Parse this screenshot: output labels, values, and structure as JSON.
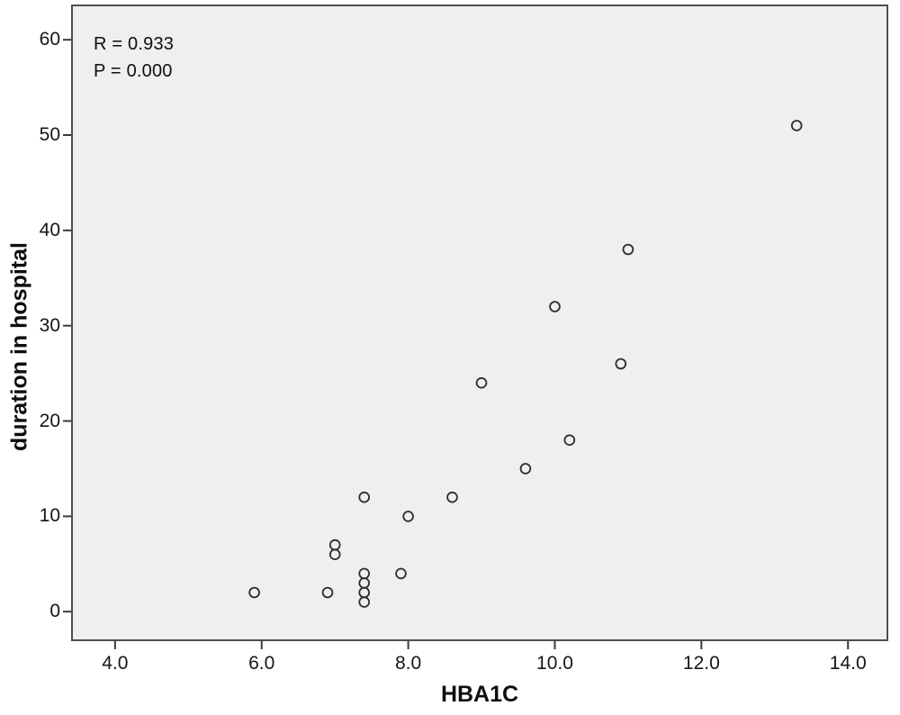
{
  "chart_data": {
    "type": "scatter",
    "xlabel": "HBA1C",
    "ylabel": "duration in hospital",
    "annotations": [
      "R = 0.933",
      "P = 0.000"
    ],
    "stats": {
      "R": "0.933",
      "P": "0.000"
    },
    "xlim": [
      3.4,
      14.55
    ],
    "ylim": [
      -3.1,
      63.7
    ],
    "x_ticks": {
      "values": [
        4,
        6,
        8,
        10,
        12,
        14
      ],
      "labels": [
        "4.0",
        "6.0",
        "8.0",
        "10.0",
        "12.0",
        "14.0"
      ]
    },
    "y_ticks": {
      "values": [
        0,
        10,
        20,
        30,
        40,
        50,
        60
      ],
      "labels": [
        "0",
        "10",
        "20",
        "30",
        "40",
        "50",
        "60"
      ]
    },
    "points": [
      [
        5.9,
        2
      ],
      [
        6.9,
        2
      ],
      [
        7.0,
        6
      ],
      [
        7.0,
        7
      ],
      [
        7.4,
        1
      ],
      [
        7.4,
        2
      ],
      [
        7.4,
        3
      ],
      [
        7.4,
        4
      ],
      [
        7.4,
        12
      ],
      [
        7.9,
        4
      ],
      [
        8.0,
        10
      ],
      [
        8.6,
        12
      ],
      [
        9.0,
        24
      ],
      [
        9.6,
        15
      ],
      [
        10.0,
        32
      ],
      [
        10.2,
        18
      ],
      [
        10.9,
        26
      ],
      [
        11.0,
        38
      ],
      [
        13.3,
        51
      ]
    ],
    "grid": false,
    "legend": false,
    "marker": "open-circle"
  },
  "annotation": {
    "r_line": "R = 0.933",
    "p_line": "P = 0.000"
  },
  "colors": {
    "page_bg": "#ffffff",
    "plot_bg": "#f0efed",
    "frame": "#4e4e4e",
    "tick": "#3a3a3a",
    "marker": "#2d2d2d",
    "text": "#0e0e0e"
  }
}
